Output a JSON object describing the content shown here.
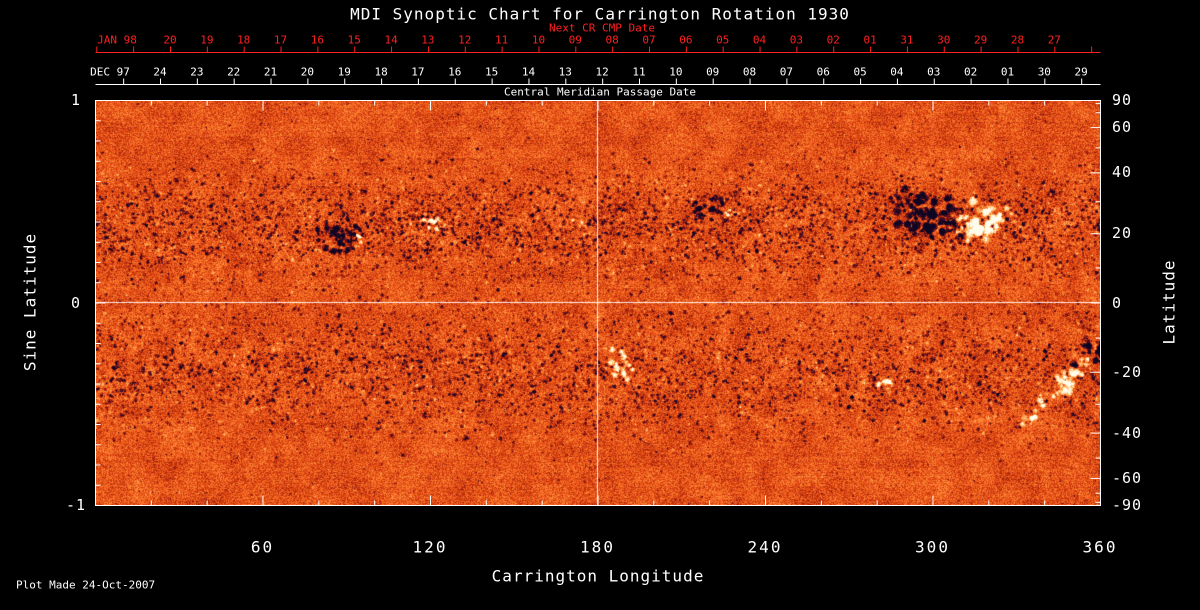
{
  "title": "MDI Synoptic Chart for Carrington Rotation 1930",
  "footer": "Plot Made 24-Oct-2007",
  "colors": {
    "background": "#000000",
    "foreground": "#ffffff",
    "next_cr_red": "#ff2020",
    "base_orange": "#eb5216",
    "negative_polarity_dark": "#140826",
    "positive_polarity_light": "#fffce8"
  },
  "top_axes": {
    "next_cr": {
      "label": "Next CR CMP Date",
      "month": "JAN 98",
      "days": [
        "20",
        "19",
        "18",
        "17",
        "16",
        "15",
        "14",
        "13",
        "12",
        "11",
        "10",
        "09",
        "08",
        "07",
        "06",
        "05",
        "04",
        "03",
        "02",
        "01",
        "31",
        "30",
        "29",
        "28",
        "27"
      ]
    },
    "cmp": {
      "title": "Central Meridian Passage Date",
      "month": "DEC 97",
      "days": [
        "24",
        "23",
        "22",
        "21",
        "20",
        "19",
        "18",
        "17",
        "16",
        "15",
        "14",
        "13",
        "12",
        "11",
        "10",
        "09",
        "08",
        "07",
        "06",
        "05",
        "04",
        "03",
        "02",
        "01",
        "30",
        "29"
      ]
    }
  },
  "y_axis_left": {
    "title": "Sine Latitude",
    "ticks": [
      "1",
      "0",
      "-1"
    ]
  },
  "y_axis_right": {
    "title": "Latitude",
    "ticks": [
      "90",
      "60",
      "40",
      "20",
      "0",
      "-20",
      "-40",
      "-60",
      "-90"
    ]
  },
  "x_axis": {
    "title": "Carrington Longitude",
    "ticks": [
      "60",
      "120",
      "180",
      "240",
      "300",
      "360"
    ]
  },
  "chart_data": {
    "type": "heatmap",
    "title": "MDI Synoptic Chart for Carrington Rotation 1930",
    "carrington_rotation": 1930,
    "x": {
      "label": "Carrington Longitude",
      "range": [
        0,
        360
      ],
      "ticks": [
        60,
        120,
        180,
        240,
        300,
        360
      ]
    },
    "y": {
      "label": "Sine Latitude",
      "range": [
        -1,
        1
      ],
      "ticks": [
        1,
        0,
        -1
      ]
    },
    "y2": {
      "label": "Latitude",
      "range": [
        -90,
        90
      ],
      "ticks": [
        90,
        60,
        40,
        20,
        0,
        -20,
        -40,
        -60,
        -90
      ]
    },
    "gridlines": {
      "longitude": [
        180
      ],
      "latitude": [
        0
      ]
    },
    "colormap": "orange-red quiet-Sun background; strong negative magnetic field appears black/dark-navy; strong positive field appears white/cream",
    "cmp_date_axis": {
      "month": "DEC 97",
      "first_label": "24",
      "last_label": "29 (NOV)"
    },
    "next_cr_cmp_axis": {
      "month": "JAN 98",
      "first_label": "20",
      "last_label": "27 (DEC)"
    },
    "activity_bands_latitude": [
      22,
      -20
    ],
    "active_regions": [
      {
        "longitude": 88,
        "latitude": 19,
        "polarity": "negative",
        "size": "medium"
      },
      {
        "longitude": 94,
        "latitude": 18,
        "polarity": "positive",
        "size": "small"
      },
      {
        "longitude": 120,
        "latitude": 22,
        "polarity": "positive",
        "size": "small"
      },
      {
        "longitude": 117,
        "latitude": 25,
        "polarity": "negative",
        "size": "small"
      },
      {
        "longitude": 220,
        "latitude": 26,
        "polarity": "negative",
        "size": "medium"
      },
      {
        "longitude": 226,
        "latitude": 24,
        "polarity": "positive",
        "size": "small"
      },
      {
        "longitude": 298,
        "latitude": 26,
        "polarity": "negative",
        "size": "large"
      },
      {
        "longitude": 317,
        "latitude": 22,
        "polarity": "positive",
        "size": "large"
      },
      {
        "longitude": 189,
        "latitude": -18,
        "polarity": "positive",
        "size": "small"
      },
      {
        "longitude": 184,
        "latitude": -20,
        "polarity": "negative",
        "size": "small"
      },
      {
        "longitude": 283,
        "latitude": -23,
        "polarity": "positive",
        "size": "small"
      },
      {
        "longitude": 277,
        "latitude": -22,
        "polarity": "negative",
        "size": "small"
      },
      {
        "longitude": 345,
        "latitude": -25,
        "polarity": "positive",
        "size": "large-elongated"
      },
      {
        "longitude": 357,
        "latitude": -14,
        "polarity": "negative",
        "size": "medium"
      },
      {
        "longitude": 8,
        "latitude": -21,
        "polarity": "negative",
        "size": "scattered"
      }
    ]
  }
}
